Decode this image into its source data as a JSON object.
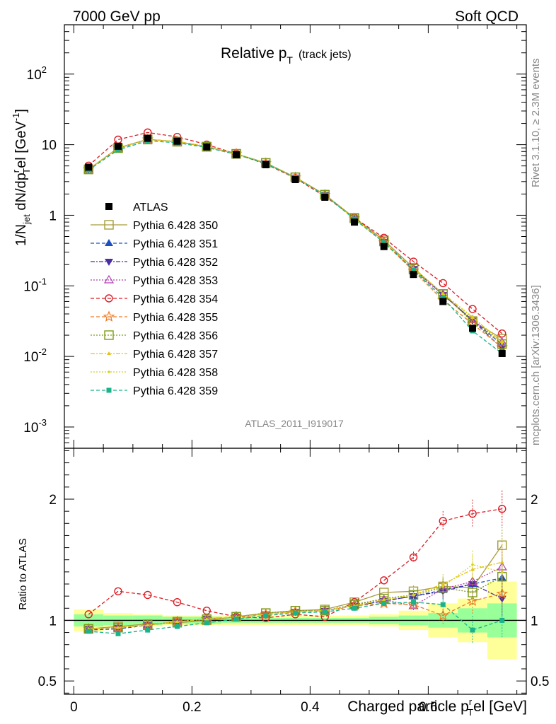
{
  "header": {
    "left": "7000 GeV pp",
    "right": "Soft QCD"
  },
  "side_labels": {
    "rivet": "Rivet 3.1.10, ≥ 2.3M events",
    "mcplots": "mcplots.cern.ch [arXiv:1306.3436]"
  },
  "analysis_tag": "ATLAS_2011_I919017",
  "chart_data": {
    "type": "line",
    "title": "Relative p_T (track jets)",
    "title_main": "Relative p",
    "title_sub": "T",
    "title_note": "(track jets)",
    "ylabel": "1/N_jet dN/dp_T^rel [GeV^-1]",
    "ylabel_parts": {
      "a": "1/N",
      "b": "jet",
      "c": " dN/dp",
      "d": "r",
      "e": "T",
      "f": "el [GeV",
      "g": "-1",
      "h": "]"
    },
    "xlabel": "Charged particle p_T^rel [GeV]",
    "xlabel_parts": {
      "a": "Charged particle p",
      "b": "r",
      "c": "T",
      "d": "el [GeV]"
    },
    "ratio_ylabel": "Ratio to ATLAS",
    "xlim": [
      -0.016,
      0.766
    ],
    "ylim": [
      0.0005,
      500
    ],
    "ylog": true,
    "ratio_ylim": [
      0.39,
      2.42
    ],
    "x_ticks": [
      "0",
      "0.2",
      "0.4",
      "0.6"
    ],
    "x_tick_values": [
      0,
      0.2,
      0.4,
      0.6
    ],
    "y_ticks": [
      "10^-3",
      "10^-2",
      "10^-1",
      "1",
      "10",
      "10^2"
    ],
    "ratio_ticks": [
      "0.5",
      "1",
      "2"
    ],
    "x": [
      0.025,
      0.075,
      0.125,
      0.175,
      0.225,
      0.275,
      0.325,
      0.375,
      0.425,
      0.475,
      0.525,
      0.575,
      0.625,
      0.675,
      0.725
    ],
    "data": {
      "name": "ATLAS",
      "values": [
        4.8,
        9.5,
        12.3,
        11.2,
        9.3,
        7.2,
        5.2,
        3.2,
        1.8,
        0.8,
        0.36,
        0.145,
        0.06,
        0.025,
        0.011
      ],
      "band_inner": [
        0.05,
        0.04,
        0.04,
        0.03,
        0.03,
        0.02,
        0.02,
        0.02,
        0.02,
        0.02,
        0.03,
        0.04,
        0.06,
        0.1,
        0.14
      ],
      "band_outer": [
        0.09,
        0.06,
        0.05,
        0.04,
        0.04,
        0.04,
        0.04,
        0.04,
        0.04,
        0.04,
        0.05,
        0.08,
        0.14,
        0.18,
        0.32
      ]
    },
    "series": [
      {
        "name": "Pythia 6.428 350",
        "color": "#a89c3a",
        "marker": "square-open",
        "dash": "",
        "ratio": [
          0.93,
          0.95,
          0.97,
          0.98,
          1.0,
          1.03,
          1.06,
          1.08,
          1.09,
          1.15,
          1.23,
          1.24,
          1.28,
          1.27,
          1.62
        ]
      },
      {
        "name": "Pythia 6.428 351",
        "color": "#1f4fbf",
        "marker": "tri-up",
        "dash": "5,3",
        "ratio": [
          0.92,
          0.93,
          0.96,
          0.99,
          1.01,
          1.03,
          1.05,
          1.07,
          1.08,
          1.12,
          1.16,
          1.2,
          1.25,
          1.3,
          1.35
        ]
      },
      {
        "name": "Pythia 6.428 352",
        "color": "#4a2da0",
        "marker": "tri-down",
        "dash": "6,2,2,2",
        "ratio": [
          0.93,
          0.94,
          0.96,
          0.99,
          1.01,
          1.03,
          1.05,
          1.07,
          1.08,
          1.12,
          1.16,
          1.2,
          1.24,
          1.3,
          1.18
        ]
      },
      {
        "name": "Pythia 6.428 353",
        "color": "#b03ab0",
        "marker": "tri-up-open",
        "dash": "2,2",
        "ratio": [
          0.93,
          0.94,
          0.96,
          0.99,
          1.01,
          1.03,
          1.05,
          1.07,
          1.08,
          1.13,
          1.17,
          1.12,
          1.26,
          1.32,
          1.44
        ]
      },
      {
        "name": "Pythia 6.428 354",
        "color": "#dd1c24",
        "marker": "circle-open",
        "dash": "5,3",
        "ratio": [
          1.05,
          1.24,
          1.21,
          1.15,
          1.08,
          1.03,
          1.02,
          1.05,
          1.03,
          1.15,
          1.33,
          1.52,
          1.82,
          1.88,
          1.92
        ]
      },
      {
        "name": "Pythia 6.428 355",
        "color": "#f07a20",
        "marker": "star-open",
        "dash": "5,3",
        "ratio": [
          0.93,
          0.94,
          0.96,
          0.99,
          1.01,
          1.03,
          1.05,
          1.07,
          1.08,
          1.12,
          1.14,
          1.13,
          1.04,
          1.16,
          1.22
        ]
      },
      {
        "name": "Pythia 6.428 356",
        "color": "#7e9a1a",
        "marker": "square-open",
        "dash": "2,2",
        "ratio": [
          0.93,
          0.94,
          0.96,
          0.99,
          1.01,
          1.03,
          1.06,
          1.08,
          1.08,
          1.13,
          1.18,
          1.21,
          1.27,
          1.23,
          1.36
        ]
      },
      {
        "name": "Pythia 6.428 357",
        "color": "#e6c21a",
        "marker": "tri-small",
        "dash": "6,2,2,2",
        "ratio": [
          0.93,
          0.94,
          0.96,
          0.99,
          1.01,
          1.03,
          1.05,
          1.07,
          1.08,
          1.12,
          1.17,
          1.21,
          1.3,
          1.42,
          1.48
        ]
      },
      {
        "name": "Pythia 6.428 358",
        "color": "#d4d41a",
        "marker": "dot",
        "dash": "2,2",
        "ratio": [
          0.93,
          0.94,
          0.96,
          0.99,
          1.01,
          1.03,
          1.05,
          1.07,
          1.08,
          1.12,
          1.17,
          1.21,
          1.28,
          1.46,
          1.4
        ]
      },
      {
        "name": "Pythia 6.428 359",
        "color": "#1ab38a",
        "marker": "square-filled",
        "dash": "5,3",
        "ratio": [
          0.91,
          0.89,
          0.92,
          0.95,
          0.98,
          1.01,
          1.04,
          1.06,
          1.07,
          1.1,
          1.14,
          1.15,
          1.13,
          0.92,
          1.0
        ]
      }
    ]
  }
}
